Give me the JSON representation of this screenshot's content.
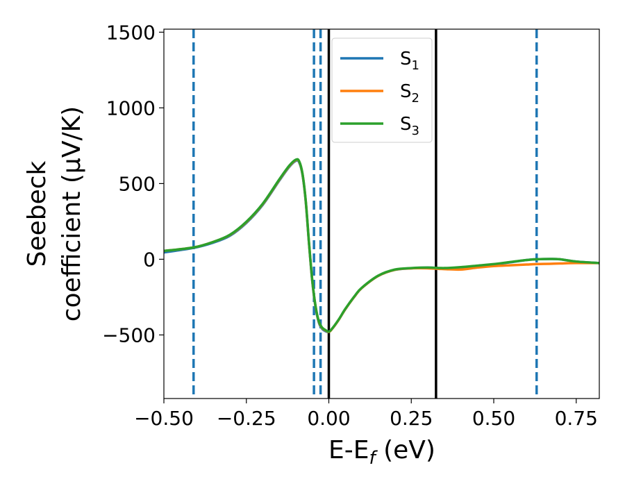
{
  "chart_data": {
    "type": "line",
    "xlabel": "E-E",
    "xlabel_sub": "f",
    "xlabel_unit": " (eV)",
    "ylabel_line1": "Seebeck",
    "ylabel_line2": "coefficient  (μV/K)",
    "xlim": [
      -0.5,
      0.82
    ],
    "ylim": [
      -920,
      1520
    ],
    "xticks": [
      -0.5,
      -0.25,
      0.0,
      0.25,
      0.5,
      0.75
    ],
    "xtick_labels": [
      "−0.50",
      "−0.25",
      "0.00",
      "0.25",
      "0.50",
      "0.75"
    ],
    "yticks": [
      -500,
      0,
      500,
      1000,
      1500
    ],
    "ytick_labels": [
      "−500",
      "0",
      "500",
      "1000",
      "1500"
    ],
    "legend_position": "top-right",
    "vlines_dashed": {
      "color": "#1f77b4",
      "x": [
        -0.41,
        -0.045,
        -0.025,
        0.63
      ]
    },
    "vlines_solid": {
      "color": "#000000",
      "x": [
        0.0,
        0.325
      ]
    },
    "series": [
      {
        "name": "S",
        "name_sub": "1",
        "color": "#1f77b4",
        "x": [
          -0.5,
          -0.41,
          -0.35,
          -0.3,
          -0.25,
          -0.2,
          -0.15,
          -0.12,
          -0.1,
          -0.09,
          -0.08,
          -0.07,
          -0.06,
          -0.05,
          -0.04,
          -0.03,
          -0.02,
          -0.01,
          0.0,
          0.01,
          0.03,
          0.05,
          0.08,
          0.1,
          0.15,
          0.2,
          0.25,
          0.3,
          0.35,
          0.4,
          0.45,
          0.5,
          0.55,
          0.6,
          0.63,
          0.67,
          0.7,
          0.75,
          0.82
        ],
        "y": [
          45,
          75,
          110,
          155,
          240,
          360,
          520,
          610,
          650,
          640,
          560,
          380,
          100,
          -150,
          -320,
          -420,
          -460,
          -475,
          -480,
          -460,
          -400,
          -330,
          -240,
          -190,
          -110,
          -70,
          -60,
          -55,
          -60,
          -55,
          -45,
          -35,
          -20,
          -5,
          0,
          2,
          0,
          -15,
          -25
        ]
      },
      {
        "name": "S",
        "name_sub": "2",
        "color": "#ff7f0e",
        "x": [
          -0.5,
          -0.41,
          -0.35,
          -0.3,
          -0.25,
          -0.2,
          -0.15,
          -0.12,
          -0.1,
          -0.09,
          -0.08,
          -0.07,
          -0.06,
          -0.05,
          -0.04,
          -0.03,
          -0.02,
          -0.01,
          0.0,
          0.01,
          0.03,
          0.05,
          0.08,
          0.1,
          0.15,
          0.2,
          0.25,
          0.3,
          0.35,
          0.4,
          0.45,
          0.5,
          0.55,
          0.6,
          0.63,
          0.67,
          0.7,
          0.75,
          0.82
        ],
        "y": [
          55,
          78,
          115,
          160,
          245,
          365,
          525,
          615,
          655,
          645,
          565,
          385,
          105,
          -145,
          -315,
          -415,
          -455,
          -470,
          -480,
          -460,
          -400,
          -330,
          -240,
          -190,
          -110,
          -70,
          -60,
          -60,
          -65,
          -68,
          -55,
          -45,
          -40,
          -35,
          -32,
          -30,
          -28,
          -25,
          -25
        ]
      },
      {
        "name": "S",
        "name_sub": "3",
        "color": "#2ca02c",
        "x": [
          -0.5,
          -0.41,
          -0.35,
          -0.3,
          -0.25,
          -0.2,
          -0.15,
          -0.12,
          -0.1,
          -0.09,
          -0.08,
          -0.07,
          -0.06,
          -0.05,
          -0.04,
          -0.03,
          -0.02,
          -0.01,
          0.0,
          0.01,
          0.03,
          0.05,
          0.08,
          0.1,
          0.15,
          0.2,
          0.25,
          0.3,
          0.35,
          0.4,
          0.45,
          0.5,
          0.55,
          0.6,
          0.63,
          0.67,
          0.7,
          0.75,
          0.82
        ],
        "y": [
          55,
          78,
          115,
          162,
          248,
          368,
          528,
          618,
          658,
          648,
          568,
          388,
          108,
          -142,
          -312,
          -412,
          -452,
          -468,
          -478,
          -458,
          -398,
          -328,
          -238,
          -188,
          -108,
          -68,
          -58,
          -55,
          -58,
          -52,
          -42,
          -32,
          -18,
          -5,
          0,
          2,
          0,
          -15,
          -25
        ]
      }
    ]
  }
}
